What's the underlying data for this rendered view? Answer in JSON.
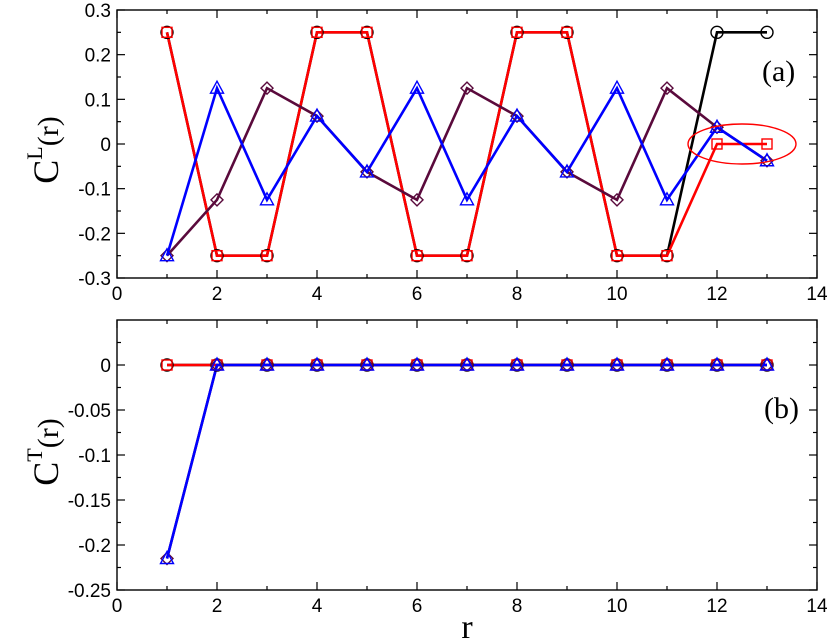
{
  "colors": {
    "black": "#000000",
    "red": "#ff0000",
    "blue": "#0000ff",
    "purple": "#5a0a3c",
    "circle_stroke": "#000000",
    "square_stroke": "#ff0000",
    "triangle_stroke": "#0000ff",
    "diamond_stroke": "#5a0a3c"
  },
  "xlabel": "r",
  "chart_data": [
    {
      "id": "a",
      "type": "line",
      "panel_label": "(a)",
      "ylabel_main": "C",
      "ylabel_sup": "L",
      "ylabel_tail": "(r)",
      "xlim": [
        0,
        14
      ],
      "ylim": [
        -0.3,
        0.3
      ],
      "xticks": [
        0,
        2,
        4,
        6,
        8,
        10,
        12,
        14
      ],
      "yticks": [
        -0.3,
        -0.2,
        -0.1,
        0,
        0.1,
        0.2,
        0.3
      ],
      "xtick_labels": [
        "0",
        "2",
        "4",
        "6",
        "8",
        "10",
        "12",
        "14"
      ],
      "ytick_labels": [
        "-0.3",
        "-0.2",
        "-0.1",
        "0",
        "0.1",
        "0.2",
        "0.3"
      ],
      "annotation": "red ellipse around red-square points at r = 12 and 13",
      "series": [
        {
          "key": "black-circle",
          "color": "black",
          "marker": "circle",
          "x": [
            1,
            2,
            3,
            4,
            5,
            6,
            7,
            8,
            9,
            10,
            11,
            12,
            13
          ],
          "y": [
            0.25,
            -0.25,
            -0.25,
            0.25,
            0.25,
            -0.25,
            -0.25,
            0.25,
            0.25,
            -0.25,
            -0.25,
            0.25,
            0.25
          ]
        },
        {
          "key": "red-square",
          "color": "red",
          "marker": "square",
          "x": [
            1,
            2,
            3,
            4,
            5,
            6,
            7,
            8,
            9,
            10,
            11,
            12,
            13
          ],
          "y": [
            0.25,
            -0.25,
            -0.25,
            0.25,
            0.25,
            -0.25,
            -0.25,
            0.25,
            0.25,
            -0.25,
            -0.25,
            0,
            0
          ]
        },
        {
          "key": "purple-diamond",
          "color": "purple",
          "marker": "diamond",
          "x": [
            1,
            2,
            3,
            4,
            5,
            6,
            7,
            8,
            9,
            10,
            11,
            12,
            13
          ],
          "y": [
            -0.25,
            -0.125,
            0.125,
            0.0625,
            -0.0625,
            -0.125,
            0.125,
            0.0625,
            -0.0625,
            -0.125,
            0.125,
            0.0375,
            -0.0375
          ]
        },
        {
          "key": "blue-triangle",
          "color": "blue",
          "marker": "triangle",
          "x": [
            1,
            2,
            3,
            4,
            5,
            6,
            7,
            8,
            9,
            10,
            11,
            12,
            13
          ],
          "y": [
            -0.25,
            0.125,
            -0.125,
            0.0625,
            -0.0625,
            0.125,
            -0.125,
            0.0625,
            -0.0625,
            0.125,
            -0.125,
            0.0375,
            -0.0375
          ]
        }
      ]
    },
    {
      "id": "b",
      "type": "line",
      "panel_label": "(b)",
      "ylabel_main": "C",
      "ylabel_sup": "T",
      "ylabel_tail": "(r)",
      "xlim": [
        0,
        14
      ],
      "ylim": [
        -0.25,
        0.05
      ],
      "xticks": [
        0,
        2,
        4,
        6,
        8,
        10,
        12,
        14
      ],
      "yticks": [
        -0.25,
        -0.2,
        -0.15,
        -0.1,
        -0.05,
        0
      ],
      "xtick_labels": [
        "0",
        "2",
        "4",
        "6",
        "8",
        "10",
        "12",
        "14"
      ],
      "ytick_labels": [
        "-0.25",
        "-0.2",
        "-0.15",
        "-0.1",
        "-0.05",
        "0"
      ],
      "series": [
        {
          "key": "black-circle",
          "color": "black",
          "marker": "circle",
          "x": [
            1,
            2,
            3,
            4,
            5,
            6,
            7,
            8,
            9,
            10,
            11,
            12,
            13
          ],
          "y": [
            0,
            0,
            0,
            0,
            0,
            0,
            0,
            0,
            0,
            0,
            0,
            0,
            0
          ]
        },
        {
          "key": "red-square",
          "color": "red",
          "marker": "square",
          "x": [
            1,
            2,
            3,
            4,
            5,
            6,
            7,
            8,
            9,
            10,
            11,
            12,
            13
          ],
          "y": [
            0,
            0,
            0,
            0,
            0,
            0,
            0,
            0,
            0,
            0,
            0,
            0,
            0
          ]
        },
        {
          "key": "purple-diamond",
          "color": "purple",
          "marker": "diamond",
          "x": [
            1,
            2,
            3,
            4,
            5,
            6,
            7,
            8,
            9,
            10,
            11,
            12,
            13
          ],
          "y": [
            -0.215,
            0,
            0,
            0,
            0,
            0,
            0,
            0,
            0,
            0,
            0,
            0,
            0
          ]
        },
        {
          "key": "blue-triangle",
          "color": "blue",
          "marker": "triangle",
          "x": [
            1,
            2,
            3,
            4,
            5,
            6,
            7,
            8,
            9,
            10,
            11,
            12,
            13
          ],
          "y": [
            -0.215,
            0,
            0,
            0,
            0,
            0,
            0,
            0,
            0,
            0,
            0,
            0,
            0
          ]
        }
      ]
    }
  ]
}
